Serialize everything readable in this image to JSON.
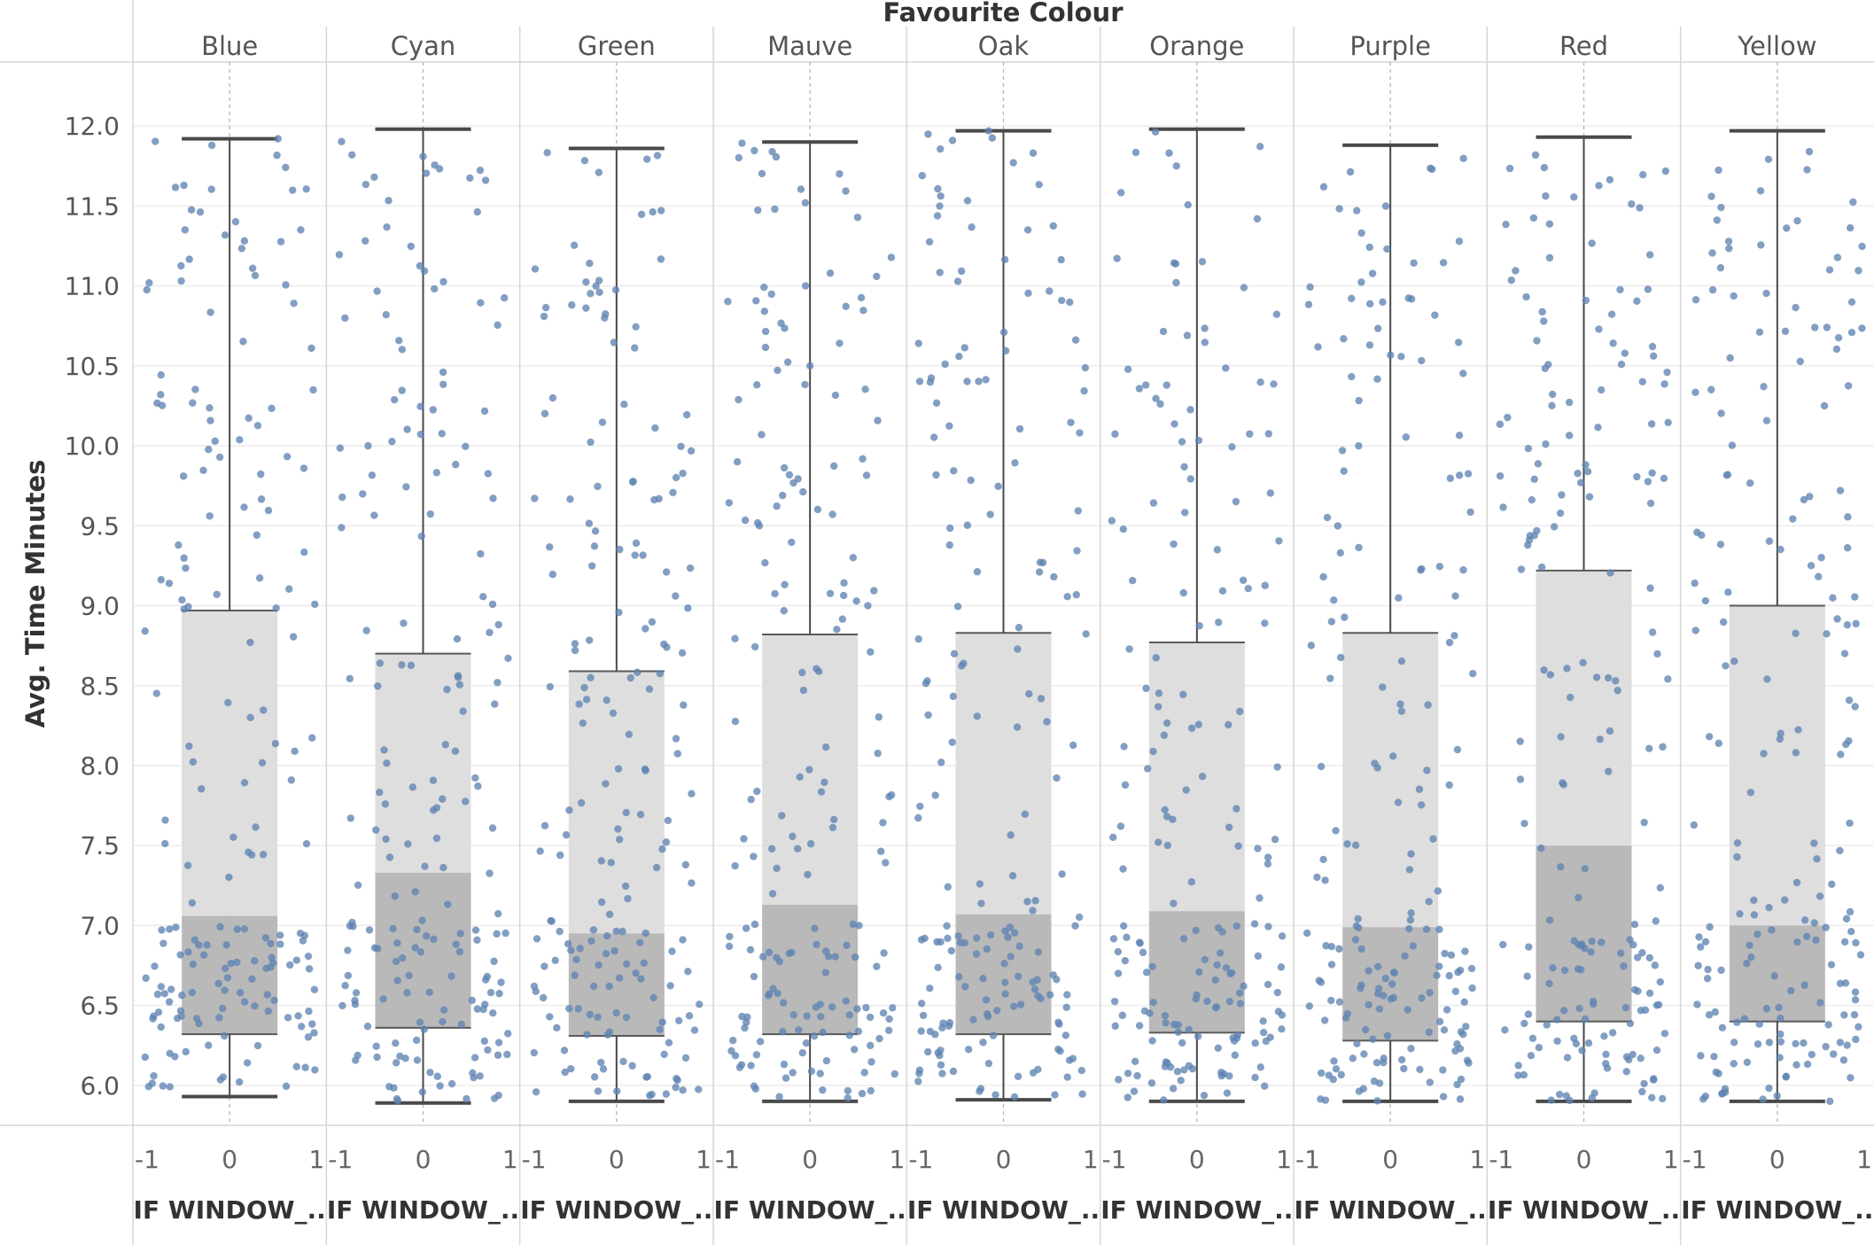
{
  "chart_data": {
    "type": "box-and-whisker with jittered scatter",
    "super_title": "Favourite Colour",
    "ylabel": "Avg. Time Minutes",
    "x_axis_label": "IF WINDOW_..",
    "ylim": [
      5.75,
      12.4
    ],
    "yticks": [
      "6.0",
      "6.5",
      "7.0",
      "7.5",
      "8.0",
      "8.5",
      "9.0",
      "9.5",
      "10.0",
      "10.5",
      "11.0",
      "11.5",
      "12.0"
    ],
    "xlim": [
      -1.05,
      1.05
    ],
    "xticks": [
      "-1",
      "0",
      "1"
    ],
    "grid": true,
    "colors": {
      "point": "#5f84b2",
      "box_upper": "#dedede",
      "box_lower": "#b9b9b9",
      "whisker": "#4a4a4a",
      "gridline": "#ececec",
      "divider": "#d6d6d6"
    },
    "panels": [
      {
        "name": "Blue",
        "whisker_low": 5.93,
        "q1": 6.32,
        "median": 7.06,
        "q3": 8.97,
        "whisker_high": 11.92
      },
      {
        "name": "Cyan",
        "whisker_low": 5.89,
        "q1": 6.36,
        "median": 7.33,
        "q3": 8.7,
        "whisker_high": 11.98
      },
      {
        "name": "Green",
        "whisker_low": 5.9,
        "q1": 6.31,
        "median": 6.95,
        "q3": 8.59,
        "whisker_high": 11.86
      },
      {
        "name": "Mauve",
        "whisker_low": 5.9,
        "q1": 6.32,
        "median": 7.13,
        "q3": 8.82,
        "whisker_high": 11.9
      },
      {
        "name": "Oak",
        "whisker_low": 5.91,
        "q1": 6.32,
        "median": 7.07,
        "q3": 8.83,
        "whisker_high": 11.97
      },
      {
        "name": "Orange",
        "whisker_low": 5.9,
        "q1": 6.33,
        "median": 7.09,
        "q3": 8.77,
        "whisker_high": 11.98
      },
      {
        "name": "Purple",
        "whisker_low": 5.9,
        "q1": 6.28,
        "median": 6.99,
        "q3": 8.83,
        "whisker_high": 11.88
      },
      {
        "name": "Red",
        "whisker_low": 5.9,
        "q1": 6.4,
        "median": 7.5,
        "q3": 9.22,
        "whisker_high": 11.93
      },
      {
        "name": "Yellow",
        "whisker_low": 5.9,
        "q1": 6.4,
        "median": 7.0,
        "q3": 9.0,
        "whisker_high": 11.97
      }
    ],
    "points_per_panel": 190,
    "points_note": "Individual jittered observations are uniformly scattered on x in [-1, 1]; y values are dense between 5.9 and 7.0 and sparser up to 12.0."
  }
}
